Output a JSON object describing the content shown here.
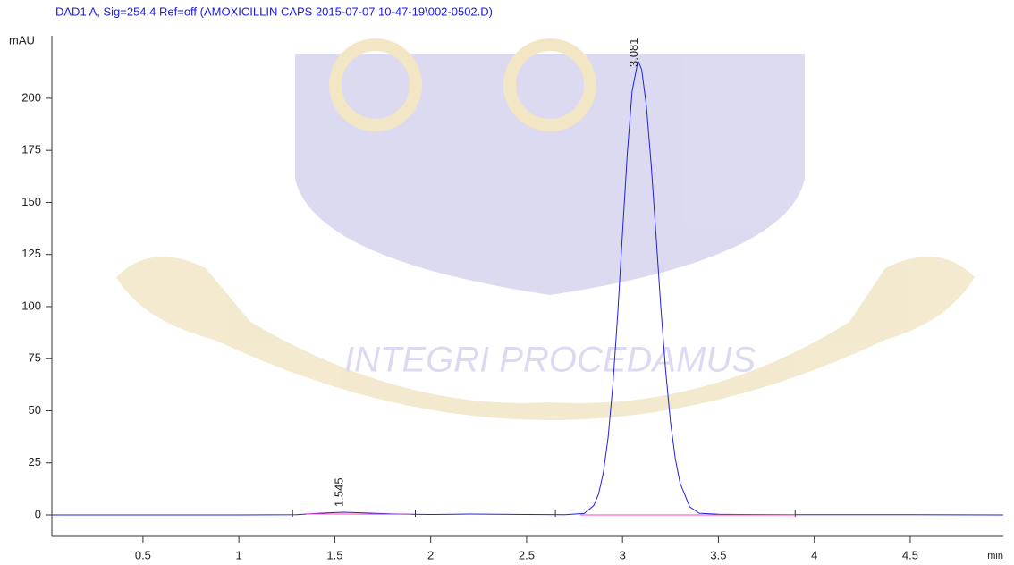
{
  "chart_data": {
    "type": "line",
    "title": "DAD1 A, Sig=254,4 Ref=off (AMOXICILLIN CAPS 2015-07-07 10-47-19\\002-0502.D)",
    "y_label": "mAU",
    "x_label": "min",
    "watermark": "INTEGRI PROCEDAMUS",
    "xlim": [
      0.025,
      4.985
    ],
    "ylim": [
      -10.3,
      230
    ],
    "xticks": [
      0.5,
      1,
      1.5,
      2,
      2.5,
      3,
      3.5,
      4,
      4.5
    ],
    "yticks": [
      0,
      25,
      50,
      75,
      100,
      125,
      150,
      175,
      200
    ],
    "peak_labels": [
      1.545,
      3.081
    ],
    "events": [
      1.28,
      1.92,
      2.65,
      3.9
    ],
    "series": [
      {
        "color": "#2020e0",
        "x": [
          0.025,
          0.5,
          1.0,
          1.3,
          1.4,
          1.5,
          1.545,
          1.6,
          1.7,
          1.8,
          1.9,
          2.0,
          2.2,
          2.5,
          2.7,
          2.8,
          2.85,
          2.875,
          2.9,
          2.925,
          2.95,
          2.975,
          3.0,
          3.025,
          3.05,
          3.081,
          3.1,
          3.125,
          3.15,
          3.175,
          3.2,
          3.225,
          3.25,
          3.275,
          3.3,
          3.35,
          3.4,
          3.5,
          3.6,
          4.0,
          4.5,
          4.985
        ],
        "values": [
          0,
          0,
          0,
          0.1,
          0.7,
          1.1,
          1.3,
          1.1,
          0.8,
          0.5,
          0.3,
          0.2,
          0.4,
          0.2,
          0.1,
          0.7,
          4.5,
          10.0,
          20.2,
          37.2,
          62.8,
          96.5,
          135.5,
          173.6,
          203.4,
          218,
          213.7,
          195.8,
          167.5,
          133.7,
          99.4,
          69.1,
          44.8,
          27.1,
          15.3,
          3.9,
          0.8,
          0.3,
          0.2,
          0.1,
          0.1,
          0
        ]
      },
      {
        "color": "#ff40c0",
        "x": [
          1.35,
          1.9
        ],
        "values": [
          0.5,
          0.3
        ]
      },
      {
        "color": "#ff40c0",
        "x": [
          2.78,
          3.9
        ],
        "values": [
          0,
          0
        ]
      }
    ]
  }
}
